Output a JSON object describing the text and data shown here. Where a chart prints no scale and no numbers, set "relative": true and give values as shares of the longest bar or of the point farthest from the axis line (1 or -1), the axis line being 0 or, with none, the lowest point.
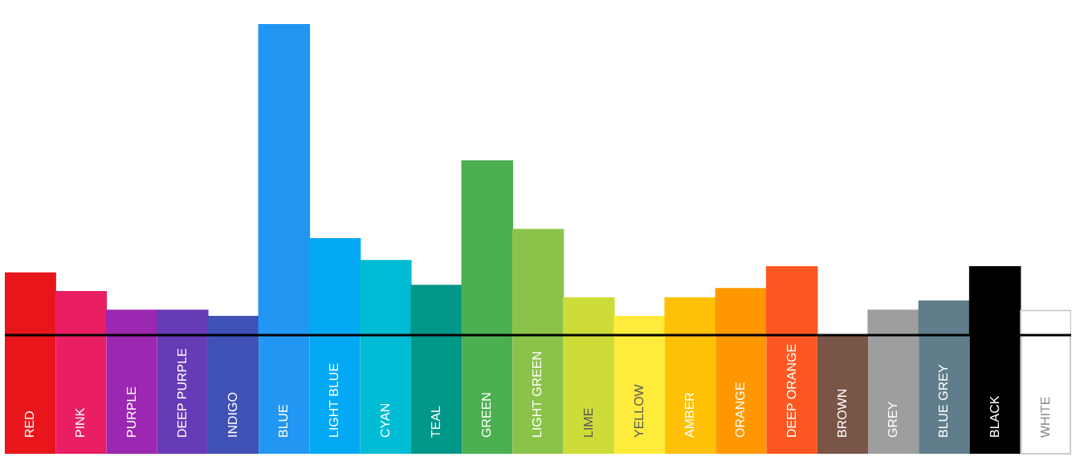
{
  "chart_data": {
    "type": "bar",
    "relative": true,
    "categories": [
      "RED",
      "PINK",
      "PURPLE",
      "DEEP PURPLE",
      "INDIGO",
      "BLUE",
      "LIGHT BLUE",
      "CYAN",
      "TEAL",
      "GREEN",
      "LIGHT GREEN",
      "LIME",
      "YELLOW",
      "AMBER",
      "ORANGE",
      "DEEP ORANGE",
      "BROWN",
      "GREY",
      "BLUE GREY",
      "BLACK",
      "WHITE"
    ],
    "values": [
      0.2,
      0.14,
      0.08,
      0.08,
      0.06,
      1,
      0.31,
      0.24,
      0.16,
      0.56,
      0.34,
      0.12,
      0.06,
      0.12,
      0.15,
      0.22,
      0,
      0.08,
      0.11,
      0.22,
      0.08
    ],
    "colors": [
      "#e8151b",
      "#e91e63",
      "#9c27b0",
      "#673ab7",
      "#3f51b5",
      "#2196f3",
      "#03a9f4",
      "#00bcd4",
      "#009688",
      "#4caf50",
      "#8bc34a",
      "#cddc39",
      "#ffeb3b",
      "#ffc107",
      "#ff9800",
      "#ff5722",
      "#795548",
      "#9e9e9e",
      "#607d8b",
      "#000000",
      "#ffffff"
    ],
    "legend": false
  }
}
